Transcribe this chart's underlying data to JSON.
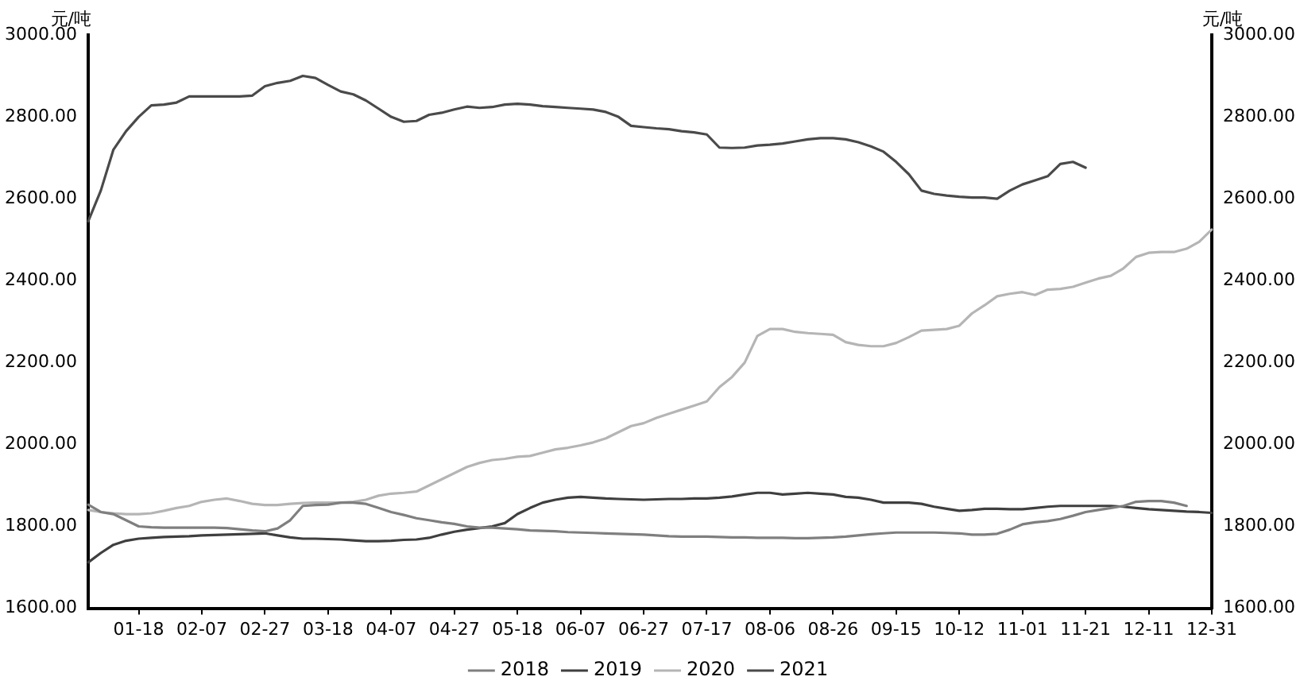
{
  "chart_data": {
    "type": "line",
    "ylabel": "元/吨",
    "y2label": "元/吨",
    "categories": [
      null,
      null,
      null,
      null,
      "01-18",
      null,
      null,
      null,
      null,
      "02-07",
      null,
      null,
      null,
      null,
      "02-27",
      null,
      null,
      null,
      null,
      "03-18",
      null,
      null,
      null,
      null,
      "04-07",
      null,
      null,
      null,
      null,
      "04-27",
      null,
      null,
      null,
      null,
      "05-18",
      null,
      null,
      null,
      null,
      "06-07",
      null,
      null,
      null,
      null,
      "06-27",
      null,
      null,
      null,
      null,
      "07-17",
      null,
      null,
      null,
      null,
      "08-06",
      null,
      null,
      null,
      null,
      "08-26",
      null,
      null,
      null,
      null,
      "09-15",
      null,
      null,
      null,
      null,
      "10-12",
      null,
      null,
      null,
      null,
      "11-01",
      null,
      null,
      null,
      null,
      "11-21",
      null,
      null,
      null,
      null,
      "12-11",
      null,
      null,
      null,
      null,
      "12-31"
    ],
    "series": [
      {
        "name": "2018",
        "color": "#7f7f7f",
        "values": [
          1853,
          1835,
          1830,
          1815,
          1800,
          1798,
          1797,
          1797,
          1797,
          1797,
          1797,
          1796,
          1793,
          1790,
          1788,
          1795,
          1815,
          1850,
          1852,
          1853,
          1858,
          1858,
          1855,
          1845,
          1835,
          1828,
          1820,
          1815,
          1810,
          1806,
          1800,
          1797,
          1797,
          1795,
          1793,
          1790,
          1789,
          1788,
          1786,
          1785,
          1784,
          1783,
          1782,
          1781,
          1780,
          1778,
          1776,
          1775,
          1775,
          1775,
          1774,
          1773,
          1773,
          1772,
          1772,
          1772,
          1771,
          1771,
          1772,
          1773,
          1775,
          1778,
          1781,
          1783,
          1785,
          1785,
          1785,
          1785,
          1784,
          1783,
          1780,
          1780,
          1782,
          1792,
          1805,
          1810,
          1813,
          1818,
          1826,
          1835,
          1840,
          1845,
          1850,
          1860,
          1862,
          1862,
          1858,
          1850,
          null,
          null
        ]
      },
      {
        "name": "2019",
        "color": "#3f3f3f",
        "values": [
          1712,
          1735,
          1755,
          1765,
          1770,
          1772,
          1774,
          1775,
          1776,
          1778,
          1779,
          1780,
          1781,
          1782,
          1783,
          1778,
          1773,
          1770,
          1770,
          1769,
          1768,
          1766,
          1764,
          1764,
          1765,
          1767,
          1768,
          1772,
          1780,
          1787,
          1792,
          1796,
          1800,
          1808,
          1830,
          1845,
          1858,
          1865,
          1870,
          1872,
          1870,
          1868,
          1867,
          1866,
          1865,
          1866,
          1867,
          1867,
          1868,
          1868,
          1870,
          1873,
          1878,
          1882,
          1882,
          1878,
          1880,
          1882,
          1880,
          1878,
          1872,
          1870,
          1865,
          1858,
          1858,
          1858,
          1855,
          1848,
          1843,
          1838,
          1840,
          1843,
          1843,
          1842,
          1842,
          1845,
          1848,
          1850,
          1850,
          1850,
          1850,
          1850,
          1848,
          1845,
          1842,
          1840,
          1838,
          1836,
          1835,
          1833
        ]
      },
      {
        "name": "2020",
        "color": "#b5b5b5",
        "values": [
          1840,
          1835,
          1832,
          1830,
          1830,
          1832,
          1838,
          1845,
          1850,
          1860,
          1865,
          1868,
          1862,
          1855,
          1852,
          1852,
          1855,
          1857,
          1858,
          1858,
          1858,
          1860,
          1865,
          1875,
          1880,
          1882,
          1885,
          1900,
          1915,
          1930,
          1945,
          1955,
          1962,
          1965,
          1970,
          1972,
          1980,
          1988,
          1992,
          1998,
          2005,
          2015,
          2030,
          2045,
          2052,
          2065,
          2075,
          2085,
          2095,
          2105,
          2140,
          2165,
          2200,
          2265,
          2282,
          2282,
          2275,
          2272,
          2270,
          2268,
          2250,
          2243,
          2240,
          2240,
          2248,
          2262,
          2278,
          2280,
          2282,
          2290,
          2320,
          2340,
          2362,
          2368,
          2372,
          2365,
          2378,
          2380,
          2385,
          2395,
          2405,
          2412,
          2430,
          2458,
          2468,
          2470,
          2470,
          2478,
          2495,
          2525
        ]
      },
      {
        "name": "2021",
        "color": "#4a4a4a",
        "values": [
          2545,
          2620,
          2720,
          2765,
          2800,
          2828,
          2830,
          2835,
          2850,
          2850,
          2850,
          2850,
          2850,
          2852,
          2875,
          2883,
          2888,
          2900,
          2895,
          2878,
          2862,
          2855,
          2840,
          2820,
          2800,
          2788,
          2790,
          2805,
          2810,
          2818,
          2825,
          2822,
          2824,
          2830,
          2832,
          2830,
          2826,
          2824,
          2822,
          2820,
          2818,
          2812,
          2800,
          2778,
          2775,
          2772,
          2770,
          2765,
          2762,
          2757,
          2725,
          2724,
          2725,
          2730,
          2732,
          2735,
          2740,
          2745,
          2748,
          2748,
          2745,
          2738,
          2728,
          2715,
          2690,
          2660,
          2620,
          2612,
          2608,
          2605,
          2603,
          2603,
          2600,
          2620,
          2635,
          2645,
          2655,
          2685,
          2690,
          2676,
          null,
          null,
          null,
          null,
          null,
          null,
          null,
          null,
          null,
          null
        ]
      }
    ],
    "ylim": [
      1600,
      3000
    ],
    "yticks": [
      {
        "value": 1600,
        "label": "1600.00"
      },
      {
        "value": 1800,
        "label": "1800.00"
      },
      {
        "value": 2000,
        "label": "2000.00"
      },
      {
        "value": 2200,
        "label": "2200.00"
      },
      {
        "value": 2400,
        "label": "2400.00"
      },
      {
        "value": 2600,
        "label": "2600.00"
      },
      {
        "value": 2800,
        "label": "2800.00"
      },
      {
        "value": 3000,
        "label": "3000.00"
      }
    ],
    "y2lim": [
      1600,
      3000
    ],
    "y2ticks": [
      {
        "value": 1600,
        "label": "1600.00"
      },
      {
        "value": 1800,
        "label": "1800.00"
      },
      {
        "value": 2000,
        "label": "2000.00"
      },
      {
        "value": 2200,
        "label": "2200.00"
      },
      {
        "value": 2400,
        "label": "2400.00"
      },
      {
        "value": 2600,
        "label": "2600.00"
      },
      {
        "value": 2800,
        "label": "2800.00"
      },
      {
        "value": 3000,
        "label": "3000.00"
      }
    ],
    "grid": false,
    "legend": "bottom",
    "line_style": "solid"
  }
}
